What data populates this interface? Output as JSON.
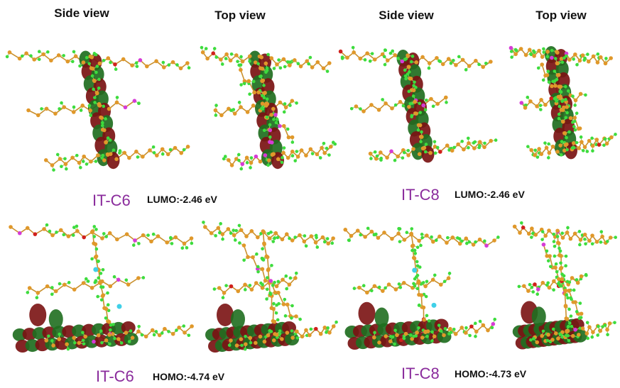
{
  "headers": [
    "Side view",
    "Top view",
    "Side view",
    "Top view"
  ],
  "rows": [
    {
      "panels": [
        {
          "molecule": "IT-C6",
          "orbital": "LUMO:-2.46 eV"
        },
        {
          "molecule": "IT-C8",
          "orbital": "LUMO:-2.46 eV"
        }
      ]
    },
    {
      "panels": [
        {
          "molecule": "IT-C6",
          "orbital": "HOMO:-4.74 eV"
        },
        {
          "molecule": "IT-C8",
          "orbital": "HOMO:-4.73 eV"
        }
      ]
    }
  ]
}
